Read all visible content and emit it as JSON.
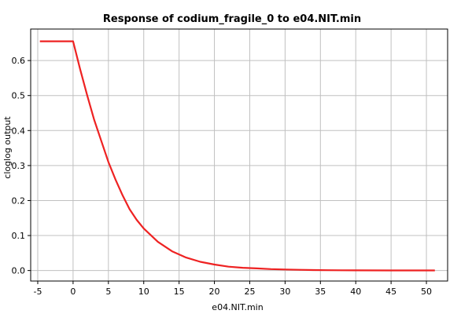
{
  "chart_data": {
    "type": "line",
    "title": "Response of codium_fragile_0 to e04.NIT.min",
    "xlabel": "e04.NIT.min",
    "ylabel": "cloglog output",
    "xlim": [
      -6,
      53
    ],
    "ylim": [
      -0.03,
      0.69
    ],
    "x_ticks": [
      -5,
      0,
      5,
      10,
      15,
      20,
      25,
      30,
      35,
      40,
      45,
      50
    ],
    "y_ticks": [
      0.0,
      0.1,
      0.2,
      0.3,
      0.4,
      0.5,
      0.6
    ],
    "grid": true,
    "series": [
      {
        "color": "#ee2222",
        "x": [
          -4.7,
          0,
          1,
          2,
          3,
          4,
          5,
          6,
          7,
          8,
          9,
          10,
          12,
          14,
          16,
          18,
          20,
          22,
          24,
          26,
          28,
          30,
          32,
          34,
          36,
          38,
          40,
          45,
          51.2
        ],
        "y": [
          0.655,
          0.655,
          0.575,
          0.5,
          0.43,
          0.37,
          0.31,
          0.26,
          0.215,
          0.175,
          0.145,
          0.12,
          0.082,
          0.055,
          0.037,
          0.025,
          0.017,
          0.011,
          0.008,
          0.006,
          0.004,
          0.003,
          0.002,
          0.0015,
          0.001,
          0.0008,
          0.0005,
          0.0003,
          0.0002
        ]
      }
    ]
  }
}
